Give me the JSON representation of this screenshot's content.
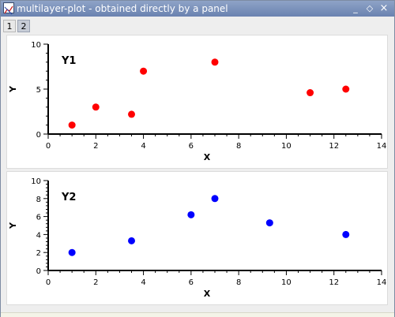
{
  "window": {
    "title": "multilayer-plot - obtained directly by a panel",
    "buttons": {
      "minimize": "_",
      "restore": "◇",
      "close": "×"
    }
  },
  "tabs": [
    {
      "label": "1",
      "active": false
    },
    {
      "label": "2",
      "active": true
    }
  ],
  "chart_data": [
    {
      "type": "scatter",
      "title": "Y1",
      "xlabel": "X",
      "ylabel": "Y",
      "xlim": [
        0,
        14
      ],
      "ylim": [
        0,
        10
      ],
      "xticks": [
        0,
        2,
        4,
        6,
        8,
        10,
        12,
        14
      ],
      "yticks": [
        0,
        5,
        10
      ],
      "grid": false,
      "color": "#ff0000",
      "x": [
        1,
        2,
        3.5,
        4,
        7,
        11,
        12.5
      ],
      "y": [
        1,
        3,
        2.2,
        7,
        8,
        4.6,
        5
      ]
    },
    {
      "type": "scatter",
      "title": "Y2",
      "xlabel": "X",
      "ylabel": "Y",
      "xlim": [
        0,
        14
      ],
      "ylim": [
        0,
        10
      ],
      "xticks": [
        0,
        2,
        4,
        6,
        8,
        10,
        12,
        14
      ],
      "yticks": [
        0,
        2,
        4,
        6,
        8,
        10
      ],
      "grid": false,
      "color": "#0000ff",
      "x": [
        1,
        3.5,
        6,
        7,
        9.3,
        12.5
      ],
      "y": [
        2,
        3.3,
        6.2,
        8,
        5.3,
        4
      ]
    }
  ]
}
